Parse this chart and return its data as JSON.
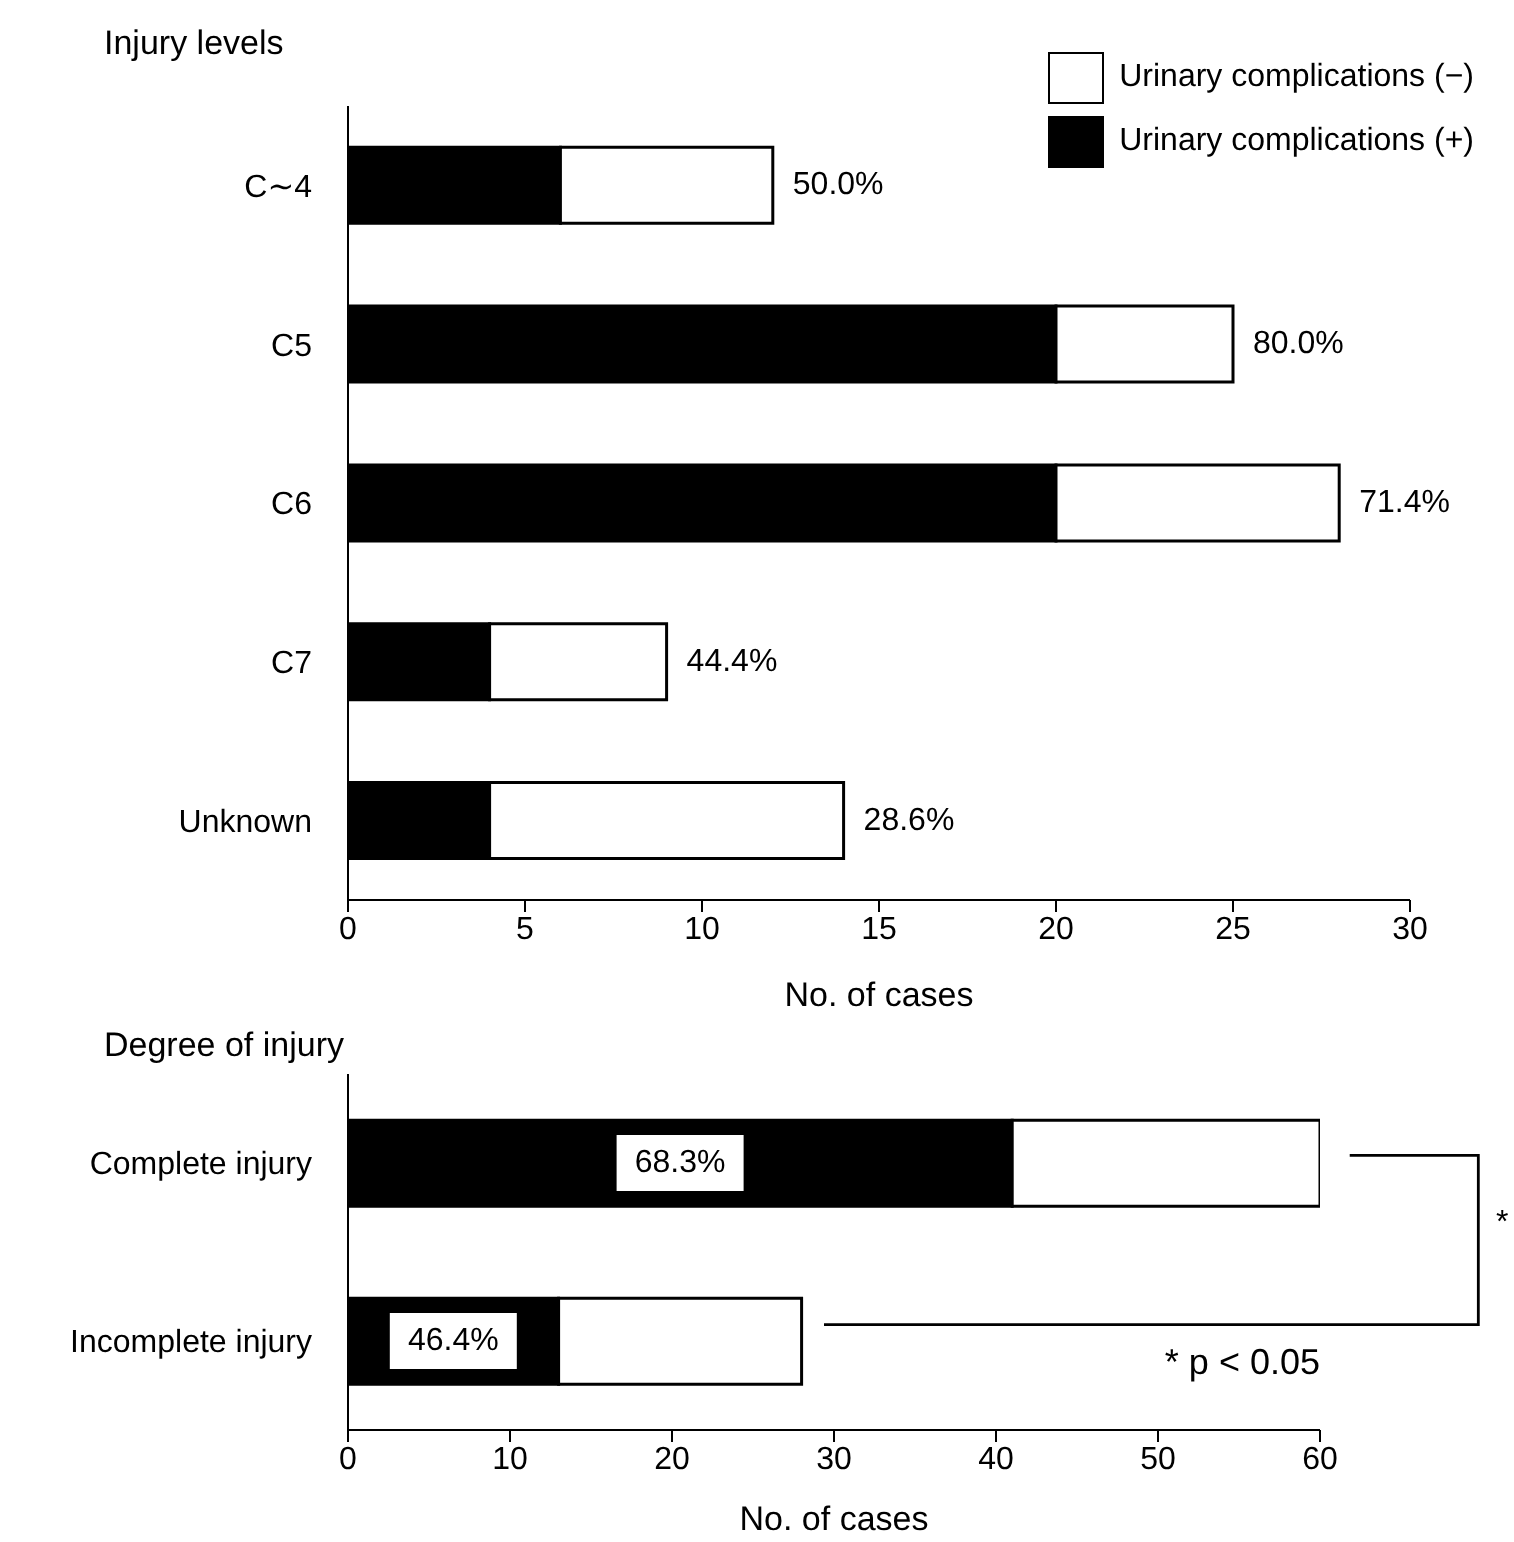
{
  "chart_data": [
    {
      "type": "bar",
      "orientation": "horizontal",
      "stacked": true,
      "ylabel": "Injury levels",
      "xlabel": "No. of cases",
      "categories": [
        "C∼4",
        "C5",
        "C6",
        "C7",
        "Unknown"
      ],
      "series": [
        {
          "name": "Urinary complications (+)",
          "color": "#000000",
          "values": [
            6,
            20,
            20,
            4,
            4
          ]
        },
        {
          "name": "Urinary complications (−)",
          "color": "#ffffff",
          "values": [
            6,
            5,
            8,
            5,
            10
          ]
        }
      ],
      "xlim": [
        0,
        30
      ],
      "xticks": [
        0,
        5,
        10,
        15,
        20,
        25,
        30
      ],
      "legend": "top right",
      "annotations": [
        {
          "text": "50.0%",
          "x": 12,
          "y": "C∼4"
        },
        {
          "text": "80.0%",
          "x": 25,
          "y": "C5"
        },
        {
          "text": "71.4%",
          "x": 28,
          "y": "C6"
        },
        {
          "text": "44.4%",
          "x": 9,
          "y": "C7"
        },
        {
          "text": "28.6%",
          "x": 14,
          "y": "Unknown"
        }
      ]
    },
    {
      "type": "bar",
      "orientation": "horizontal",
      "stacked": true,
      "ylabel": "Degree of injury",
      "xlabel": "No. of cases",
      "categories": [
        "Complete injury",
        "Incomplete injury"
      ],
      "series": [
        {
          "color": "#000000",
          "values": [
            41,
            13
          ]
        },
        {
          "color": "#ffffff",
          "values": [
            19,
            15
          ]
        }
      ],
      "xlim": [
        0,
        60
      ],
      "xticks": [
        0,
        10,
        20,
        30,
        40,
        50,
        60
      ],
      "annotations": [
        "68.3%",
        "46.4%",
        "*",
        "* p < 0.05"
      ]
    }
  ]
}
